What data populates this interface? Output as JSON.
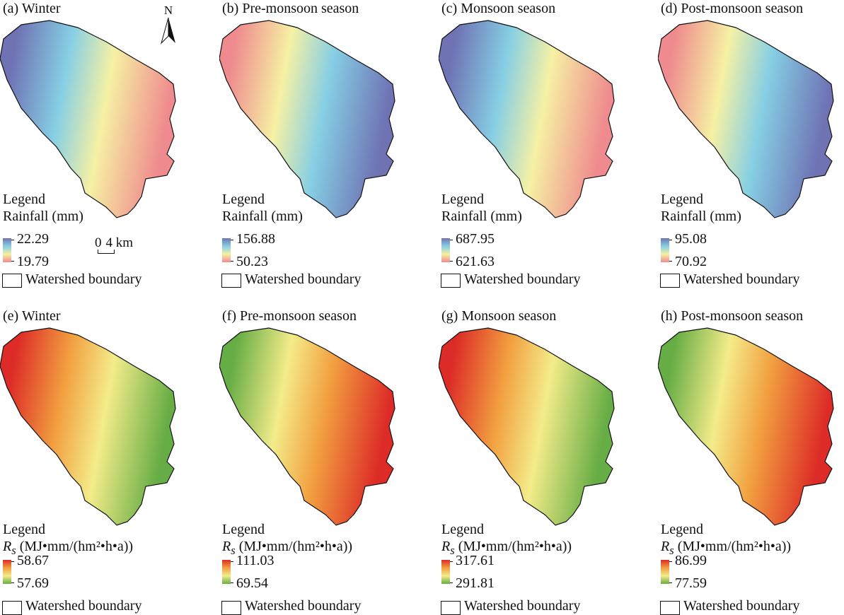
{
  "legend_label": "Legend",
  "watershed_label": "Watershed boundary",
  "scale_bar": {
    "zero": "0",
    "dist": "4 km"
  },
  "north_label": "N",
  "rows": [
    {
      "unit": "Rainfall (mm)",
      "unit_prefix": "",
      "colors_high_to_low": [
        "#6f73b4",
        "#86cfe4",
        "#f6f1a4",
        "#ef8b8e"
      ]
    },
    {
      "unit": " (MJ•mm/(hm²•h•a))",
      "unit_prefix": "Rs",
      "colors_high_to_low": [
        "#dd2b27",
        "#f2a040",
        "#f4ec8a",
        "#67ad45"
      ]
    }
  ],
  "panels": [
    {
      "title": "(a) Winter",
      "max": "22.29",
      "min": "19.79",
      "high_side": "left"
    },
    {
      "title": "(b) Pre-monsoon season",
      "max": "156.88",
      "min": "50.23",
      "high_side": "right"
    },
    {
      "title": "(c) Monsoon season",
      "max": "687.95",
      "min": "621.63",
      "high_side": "left"
    },
    {
      "title": "(d) Post-monsoon season",
      "max": "95.08",
      "min": "70.92",
      "high_side": "right"
    },
    {
      "title": "(e) Winter",
      "max": "58.67",
      "min": "57.69",
      "high_side": "left"
    },
    {
      "title": "(f) Pre-monsoon season",
      "max": "111.03",
      "min": "69.54",
      "high_side": "right"
    },
    {
      "title": "(g) Monsoon season",
      "max": "317.61",
      "min": "291.81",
      "high_side": "left"
    },
    {
      "title": "(h) Post-monsoon season",
      "max": "86.99",
      "min": "77.59",
      "high_side": "right"
    }
  ]
}
